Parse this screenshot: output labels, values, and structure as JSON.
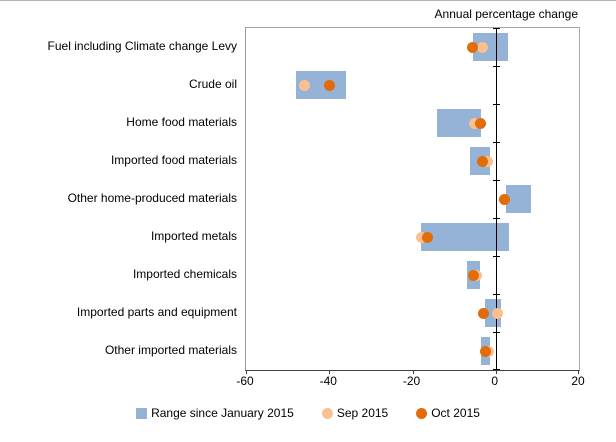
{
  "chart_data": {
    "type": "bar",
    "subtype": "horizontal_range_with_dots",
    "title": "Annual percentage change",
    "categories": [
      "Fuel including Climate change Levy",
      "Crude oil",
      "Home food materials",
      "Imported food materials",
      "Other home-produced materials",
      "Imported metals",
      "Imported chemicals",
      "Imported parts and equipment",
      "Other imported materials"
    ],
    "series": [
      {
        "name": "Range since January 2015",
        "role": "range",
        "color": "#95B3D7",
        "low": [
          -5.5,
          -48.0,
          -14.0,
          -6.3,
          2.5,
          -18.0,
          -7.0,
          -2.5,
          -3.6
        ],
        "high": [
          3.0,
          -36.0,
          -3.5,
          -1.4,
          8.5,
          3.3,
          -3.8,
          1.2,
          -1.4
        ]
      },
      {
        "name": "Sep 2015",
        "role": "dot",
        "color": "#FAC090",
        "values": [
          -3.3,
          -46.0,
          -5.0,
          -1.9,
          2.0,
          -17.8,
          -4.7,
          0.5,
          -1.7
        ]
      },
      {
        "name": "Oct 2015",
        "role": "dot",
        "color": "#E36C0A",
        "values": [
          -5.5,
          -40.0,
          -3.6,
          -3.1,
          2.0,
          -16.3,
          -5.3,
          -3.0,
          -2.4
        ]
      }
    ],
    "xlim": [
      -60,
      20
    ],
    "xticks": [
      -60,
      -40,
      -20,
      0,
      20
    ],
    "grid": false,
    "legend_position": "bottom"
  }
}
